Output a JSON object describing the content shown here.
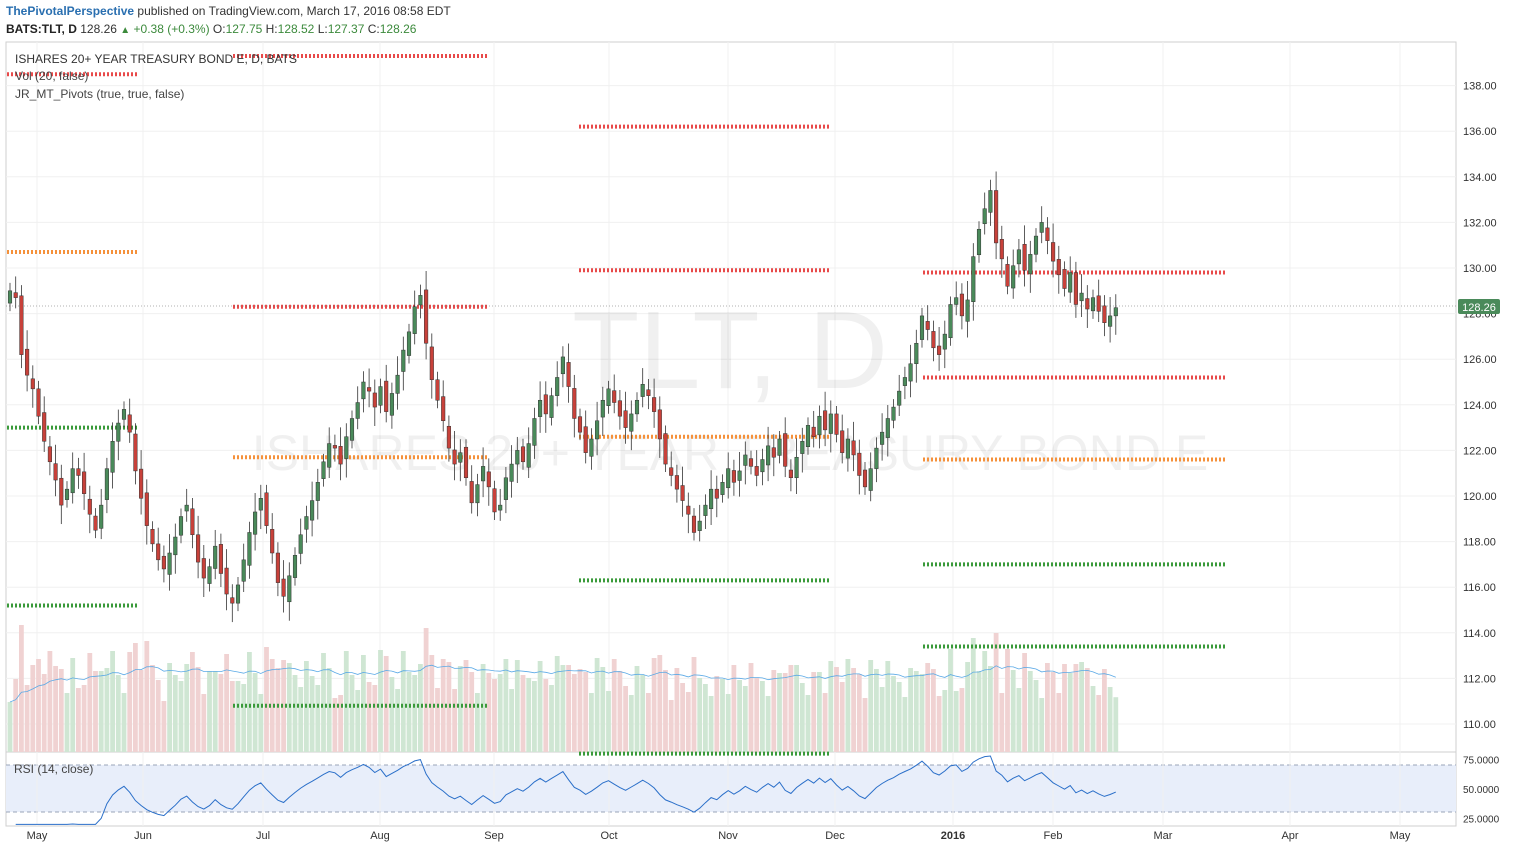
{
  "header": {
    "publisher": "ThePivotalPerspective",
    "published_text": "published on TradingView.com, March 17, 2016 08:58 EDT",
    "symbol": "BATS:TLT, D",
    "last": "128.26",
    "change_arrow": "up-triangle-icon",
    "change": "+0.38 (+0.3%)",
    "open_label": "O:",
    "open": "127.75",
    "high_label": "H:",
    "high": "128.52",
    "low_label": "L:",
    "low": "127.37",
    "close_label": "C:",
    "close": "128.26"
  },
  "legend": {
    "title": "ISHARES 20+ YEAR TREASURY BOND E, D, BATS",
    "vol": "Vol (20, false)",
    "pivots": "JR_MT_Pivots (true, true, false)",
    "rsi": "RSI (14, close)"
  },
  "watermark": {
    "big": "TLT, D",
    "small": "ISHARES 20+ YEAR TREASURY BOND E"
  },
  "price_label": "128.26",
  "colors": {
    "up": "#4a8a5a",
    "down": "#c8413a",
    "resistance": "#e84a4a",
    "pivot": "#f5913b",
    "support": "#3a9a3a",
    "rsi_line": "#2a6fc9",
    "rsi_band": "#e8eefa",
    "price_tag": "#4a8a5a"
  },
  "chart_data": {
    "type": "candlestick",
    "symbol": "BATS:TLT",
    "timeframe": "D",
    "y_axis": {
      "ticks": [
        "110.00",
        "112.00",
        "114.00",
        "116.00",
        "118.00",
        "120.00",
        "122.00",
        "124.00",
        "126.00",
        "128.00",
        "130.00",
        "132.00",
        "134.00",
        "136.00",
        "138.00"
      ]
    },
    "x_axis": {
      "ticks": [
        "May",
        "Jun",
        "Jul",
        "Aug",
        "Sep",
        "Oct",
        "Nov",
        "Dec",
        "2016",
        "Feb",
        "Mar",
        "Apr",
        "May"
      ]
    },
    "rsi_axis": {
      "ticks": [
        "75.0000",
        "50.0000",
        "25.0000"
      ],
      "upper_band": 70,
      "lower_band": 30
    },
    "last_close": 128.26,
    "closes": [
      129,
      128.7,
      126.2,
      125.3,
      124.7,
      123.5,
      122.4,
      121.5,
      120.7,
      119.6,
      120.3,
      121.2,
      120.9,
      120.1,
      119.2,
      118.5,
      119.6,
      121.2,
      122.4,
      123.2,
      123.8,
      122.8,
      121.1,
      119.9,
      118.7,
      117.9,
      117.2,
      116.8,
      117.5,
      118.2,
      119.1,
      119.6,
      118.3,
      117.1,
      116.4,
      116.9,
      117.8,
      116.6,
      115.7,
      115.3,
      116.1,
      117.2,
      118.4,
      119.3,
      119.9,
      118.7,
      117.5,
      116.2,
      115.6,
      116.5,
      117.4,
      118.3,
      119.1,
      119.8,
      120.6,
      121.5,
      122.3,
      122.1,
      121.4,
      122.6,
      123.4,
      124.1,
      125,
      124.6,
      123.9,
      124.8,
      123.7,
      124.5,
      125.3,
      126.4,
      127.2,
      128.3,
      128.8,
      126.7,
      125.1,
      124.2,
      123.3,
      122.1,
      121.4,
      121.9,
      120.8,
      119.7,
      120.5,
      121.3,
      120.4,
      119.3,
      119.6,
      120.8,
      121.4,
      122,
      121.5,
      122.3,
      123.4,
      124.2,
      123.6,
      124.4,
      125.2,
      126.1,
      124.8,
      123.4,
      122.8,
      121.9,
      122.5,
      123.3,
      124.2,
      124.7,
      124.1,
      123.5,
      123,
      123.6,
      124.2,
      124.9,
      124.4,
      123.7,
      122.5,
      121.4,
      120.9,
      120.3,
      119.8,
      119.2,
      118.4,
      118.9,
      119.6,
      120.3,
      119.9,
      120.6,
      121.2,
      120.6,
      121.1,
      121.8,
      121.3,
      120.9,
      121.6,
      122.2,
      121.7,
      122.5,
      121.3,
      120.8,
      121.7,
      122.4,
      123.1,
      122.6,
      123.5,
      122.9,
      123.6,
      122.7,
      121.9,
      122.5,
      121.8,
      120.9,
      120.4,
      121.2,
      122.1,
      122.8,
      123.4,
      123.9,
      124.6,
      125.2,
      125.8,
      126.7,
      127.9,
      127.3,
      126.5,
      126.2,
      127.1,
      128.4,
      128.7,
      127.9,
      128.6,
      130.5,
      131.7,
      132.6,
      133.4,
      131.1,
      130.4,
      129.2,
      130.1,
      130.8,
      129.9,
      130.6,
      131.4,
      132,
      131.2,
      130.3,
      129.7,
      129.1,
      129.8,
      128.4,
      128.9,
      128.2,
      128.7,
      128.1,
      127.6,
      127.9,
      128.26
    ],
    "pivot_levels": [
      {
        "kind": "R",
        "from": "May",
        "to": "Jun",
        "value": 138.5
      },
      {
        "kind": "P",
        "from": "May",
        "to": "Jun",
        "value": 130.7
      },
      {
        "kind": "S",
        "from": "May",
        "to": "Jun",
        "value": 123
      },
      {
        "kind": "S",
        "from": "May",
        "to": "Jun",
        "value": 115.2
      },
      {
        "kind": "R",
        "from": "Jul",
        "to": "Sep",
        "value": 139.3
      },
      {
        "kind": "R",
        "from": "Jul",
        "to": "Sep",
        "value": 128.3
      },
      {
        "kind": "P",
        "from": "Jul",
        "to": "Sep",
        "value": 121.7
      },
      {
        "kind": "S",
        "from": "Jul",
        "to": "Sep",
        "value": 110.8
      },
      {
        "kind": "R",
        "from": "Oct",
        "to": "Dec",
        "value": 136.2
      },
      {
        "kind": "R",
        "from": "Oct",
        "to": "Dec",
        "value": 129.9
      },
      {
        "kind": "P",
        "from": "Oct",
        "to": "Dec",
        "value": 122.6
      },
      {
        "kind": "S",
        "from": "Oct",
        "to": "Dec",
        "value": 116.3
      },
      {
        "kind": "S",
        "from": "Oct",
        "to": "Dec",
        "value": 108.7
      },
      {
        "kind": "R",
        "from": "2016",
        "to": "Mar",
        "value": 129.8
      },
      {
        "kind": "R",
        "from": "2016",
        "to": "Mar",
        "value": 125.2
      },
      {
        "kind": "P",
        "from": "2016",
        "to": "Mar",
        "value": 121.6
      },
      {
        "kind": "S",
        "from": "2016",
        "to": "Mar",
        "value": 117
      },
      {
        "kind": "S",
        "from": "2016",
        "to": "Mar",
        "value": 113.4
      }
    ]
  }
}
